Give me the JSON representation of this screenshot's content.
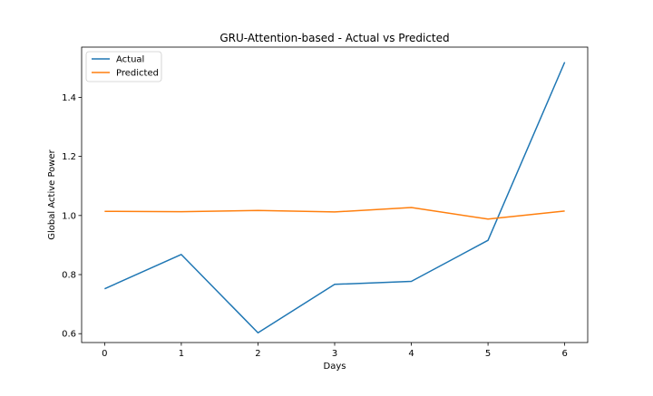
{
  "chart_data": {
    "type": "line",
    "title": "GRU-Attention-based - Actual vs Predicted",
    "xlabel": "Days",
    "ylabel": "Global Active Power",
    "x": [
      0,
      1,
      2,
      3,
      4,
      5,
      6
    ],
    "xlim": [
      -0.3,
      6.3
    ],
    "ylim": [
      0.57,
      1.57
    ],
    "xticks": [
      0,
      1,
      2,
      3,
      4,
      5,
      6
    ],
    "yticks": [
      0.6,
      0.8,
      1.0,
      1.2,
      1.4
    ],
    "ytick_labels": [
      "0.6",
      "0.8",
      "1.0",
      "1.2",
      "1.4"
    ],
    "grid": false,
    "legend_position": "upper-left",
    "series": [
      {
        "name": "Actual",
        "color": "#1f77b4",
        "values": [
          0.752,
          0.868,
          0.603,
          0.767,
          0.777,
          0.916,
          1.519
        ]
      },
      {
        "name": "Predicted",
        "color": "#ff7f0e",
        "values": [
          1.014,
          1.013,
          1.017,
          1.012,
          1.027,
          0.988,
          1.015
        ]
      }
    ]
  }
}
